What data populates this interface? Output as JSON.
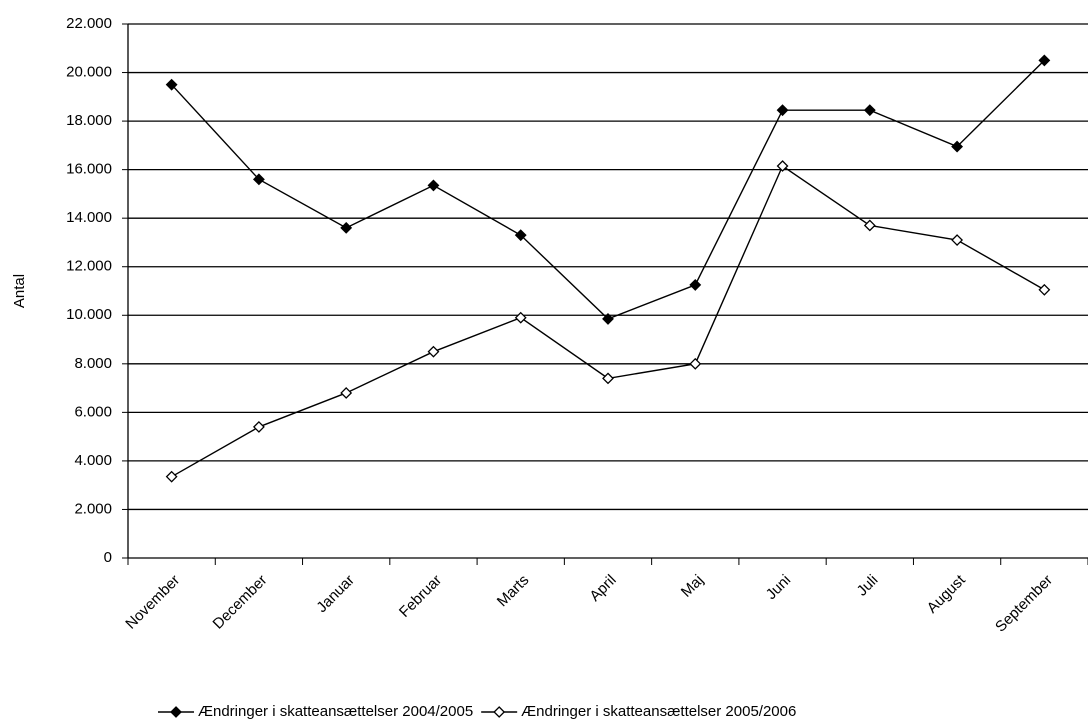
{
  "chart_data": {
    "type": "line",
    "y_label": "Antal",
    "categories": [
      "November",
      "December",
      "Januar",
      "Februar",
      "Marts",
      "April",
      "Maj",
      "Juni",
      "Juli",
      "August",
      "September"
    ],
    "series": [
      {
        "name": "Ændringer i skatteansættelser 2004/2005",
        "color": "#000000",
        "marker": "filled",
        "values": [
          19500,
          15600,
          13600,
          15350,
          13300,
          9850,
          11250,
          18450,
          18450,
          16950,
          20500
        ]
      },
      {
        "name": "Ændringer i skatteansættelser 2005/2006",
        "color": "#000000",
        "marker": "open",
        "values": [
          3350,
          5400,
          6800,
          8500,
          9900,
          7400,
          8000,
          16150,
          13700,
          13100,
          11050
        ]
      }
    ],
    "ylim": [
      0,
      22000
    ],
    "yticks": [
      0,
      {
        "value": 2000,
        "label": "2.000"
      },
      {
        "value": 4000,
        "label": "4.000"
      },
      {
        "value": 6000,
        "label": "6.000"
      },
      {
        "value": 8000,
        "label": "8.000"
      },
      {
        "value": 10000,
        "label": "10.000"
      },
      {
        "value": 12000,
        "label": "12.000"
      },
      {
        "value": 14000,
        "label": "14.000"
      },
      {
        "value": 16000,
        "label": "16.000"
      },
      {
        "value": 18000,
        "label": "18.000"
      },
      {
        "value": 20000,
        "label": "20.000"
      },
      {
        "value": 22000,
        "label": "22.000"
      }
    ],
    "grid": true,
    "legend": "bottom"
  }
}
